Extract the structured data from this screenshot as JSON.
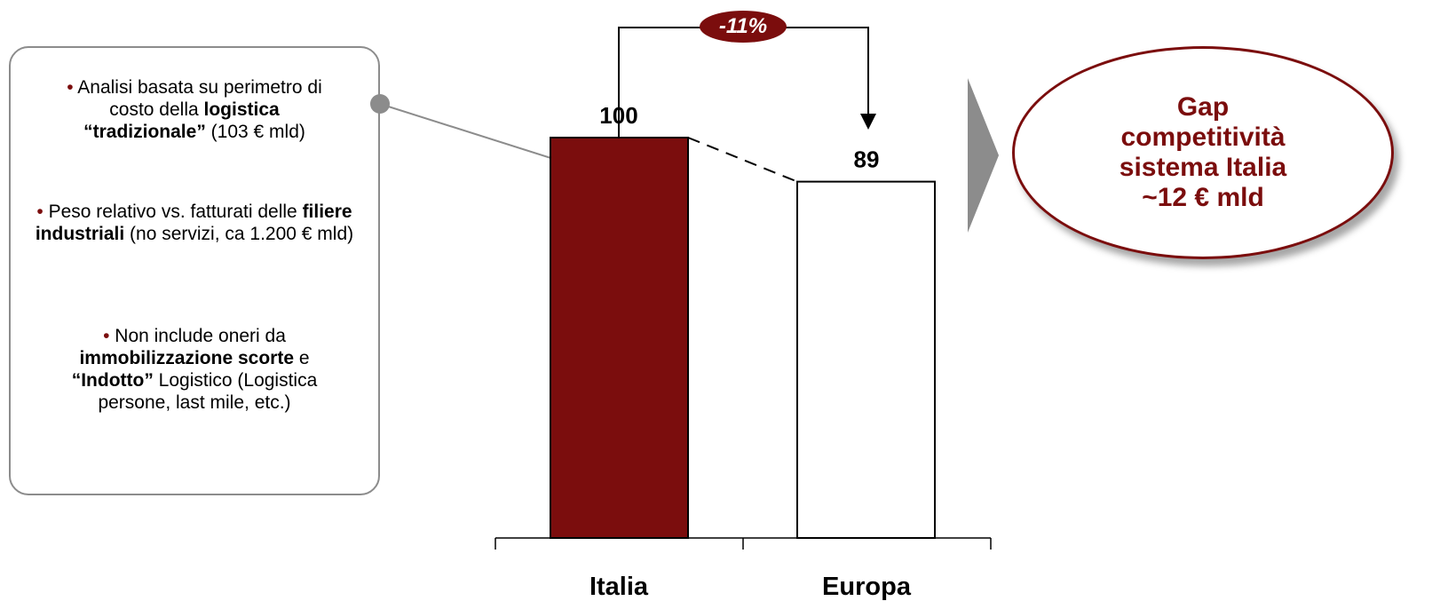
{
  "notes": [
    {
      "bullet": "•",
      "parts": [
        {
          "text": " Analisi basata su perimetro di costo della ",
          "bold": false
        },
        {
          "text": "logistica “tradizionale”",
          "bold": true
        },
        {
          "text": " (103 € mld)",
          "bold": false
        }
      ]
    },
    {
      "bullet": "•",
      "parts": [
        {
          "text": " Peso relativo vs. fatturati delle ",
          "bold": false
        },
        {
          "text": "filiere industriali",
          "bold": true
        },
        {
          "text": " (no servizi, ca 1.200 € mld)",
          "bold": false
        }
      ]
    },
    {
      "bullet": "•",
      "parts": [
        {
          "text": " Non include oneri da ",
          "bold": false
        },
        {
          "text": "immobilizzazione scorte",
          "bold": true
        },
        {
          "text": "  e ",
          "bold": false
        },
        {
          "text": "“Indotto”",
          "bold": true
        },
        {
          "text": " Logistico (Logistica persone, last mile, etc.)",
          "bold": false
        }
      ]
    }
  ],
  "chart_data": {
    "type": "bar",
    "categories": [
      "Italia",
      "Europa"
    ],
    "values": [
      100,
      89
    ],
    "data_labels": [
      "100",
      "89"
    ],
    "bar_colors": [
      "#7b0d0d",
      "#ffffff"
    ],
    "ylim": [
      0,
      100
    ],
    "annotation": "-11%",
    "title": "",
    "xlabel": "",
    "ylabel": ""
  },
  "callout": {
    "lines": [
      "Gap",
      "competitività",
      "sistema Italia",
      "~12 € mld"
    ]
  },
  "colors": {
    "accent": "#7b0d0d",
    "border": "#8c8c8c",
    "arrow": "#8c8c8c"
  }
}
